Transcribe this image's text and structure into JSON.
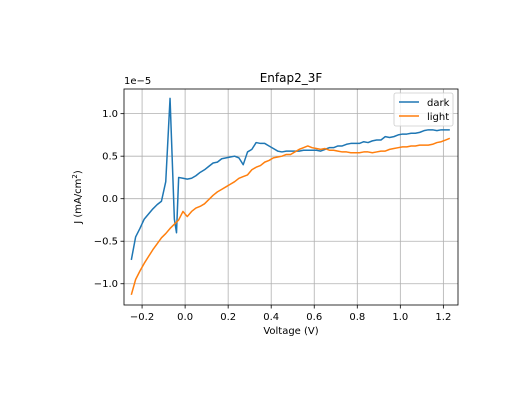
{
  "chart_data": {
    "type": "line",
    "title": "Enfap2_3F",
    "xlabel": "Voltage (V)",
    "ylabel_main": "J (mA/cm",
    "ylabel_sup": "2",
    "ylabel_close": ")",
    "offset_base": "1e",
    "offset_exp": "−5",
    "xlim": [
      -0.284,
      1.268
    ],
    "ylim": [
      -1.25,
      1.29
    ],
    "xticks": [
      -0.2,
      0.0,
      0.2,
      0.4,
      0.6,
      0.8,
      1.0,
      1.2
    ],
    "xtick_labels": [
      "−0.2",
      "0.0",
      "0.2",
      "0.4",
      "0.6",
      "0.8",
      "1.0",
      "1.2"
    ],
    "yticks": [
      -1.0,
      -0.5,
      0.0,
      0.5,
      1.0
    ],
    "ytick_labels": [
      "−1.0",
      "−0.5",
      "0.0",
      "0.5",
      "1.0"
    ],
    "grid": true,
    "legend_position": "upper right",
    "series": [
      {
        "name": "dark",
        "color": "#1f77b4",
        "x": [
          -0.25,
          -0.23,
          -0.21,
          -0.19,
          -0.17,
          -0.15,
          -0.13,
          -0.11,
          -0.09,
          -0.07,
          -0.05,
          -0.04,
          -0.03,
          -0.01,
          0.01,
          0.03,
          0.05,
          0.07,
          0.09,
          0.11,
          0.13,
          0.15,
          0.17,
          0.19,
          0.21,
          0.23,
          0.25,
          0.27,
          0.29,
          0.31,
          0.33,
          0.35,
          0.37,
          0.39,
          0.41,
          0.43,
          0.45,
          0.47,
          0.49,
          0.51,
          0.53,
          0.55,
          0.57,
          0.59,
          0.61,
          0.63,
          0.65,
          0.67,
          0.69,
          0.71,
          0.73,
          0.75,
          0.77,
          0.79,
          0.81,
          0.83,
          0.85,
          0.87,
          0.89,
          0.91,
          0.93,
          0.95,
          0.97,
          0.99,
          1.01,
          1.03,
          1.05,
          1.07,
          1.09,
          1.11,
          1.13,
          1.15,
          1.17,
          1.19,
          1.21,
          1.23
        ],
        "values": [
          -0.72,
          -0.45,
          -0.35,
          -0.24,
          -0.18,
          -0.12,
          -0.07,
          -0.03,
          0.2,
          1.18,
          -0.24,
          -0.4,
          0.25,
          0.24,
          0.23,
          0.24,
          0.27,
          0.31,
          0.34,
          0.38,
          0.42,
          0.43,
          0.47,
          0.48,
          0.49,
          0.5,
          0.48,
          0.4,
          0.55,
          0.58,
          0.66,
          0.65,
          0.65,
          0.62,
          0.59,
          0.56,
          0.55,
          0.56,
          0.56,
          0.56,
          0.56,
          0.57,
          0.57,
          0.57,
          0.57,
          0.56,
          0.58,
          0.6,
          0.6,
          0.62,
          0.62,
          0.64,
          0.65,
          0.65,
          0.65,
          0.67,
          0.66,
          0.68,
          0.69,
          0.69,
          0.73,
          0.72,
          0.73,
          0.75,
          0.76,
          0.76,
          0.77,
          0.77,
          0.78,
          0.8,
          0.81,
          0.81,
          0.8,
          0.81,
          0.81,
          0.81
        ]
      },
      {
        "name": "light",
        "color": "#ff7f0e",
        "x": [
          -0.25,
          -0.23,
          -0.21,
          -0.19,
          -0.17,
          -0.15,
          -0.13,
          -0.11,
          -0.09,
          -0.07,
          -0.05,
          -0.03,
          -0.01,
          0.01,
          0.03,
          0.05,
          0.07,
          0.09,
          0.11,
          0.13,
          0.15,
          0.17,
          0.19,
          0.21,
          0.23,
          0.25,
          0.27,
          0.29,
          0.31,
          0.33,
          0.35,
          0.37,
          0.39,
          0.41,
          0.43,
          0.45,
          0.47,
          0.49,
          0.51,
          0.53,
          0.55,
          0.57,
          0.59,
          0.61,
          0.63,
          0.65,
          0.67,
          0.69,
          0.71,
          0.73,
          0.75,
          0.77,
          0.79,
          0.81,
          0.83,
          0.85,
          0.87,
          0.89,
          0.91,
          0.93,
          0.95,
          0.97,
          0.99,
          1.01,
          1.03,
          1.05,
          1.07,
          1.09,
          1.11,
          1.13,
          1.15,
          1.17,
          1.19,
          1.21,
          1.23
        ],
        "values": [
          -1.13,
          -0.95,
          -0.85,
          -0.76,
          -0.68,
          -0.6,
          -0.53,
          -0.46,
          -0.41,
          -0.35,
          -0.3,
          -0.25,
          -0.15,
          -0.21,
          -0.15,
          -0.11,
          -0.09,
          -0.06,
          -0.01,
          0.04,
          0.08,
          0.11,
          0.14,
          0.17,
          0.2,
          0.24,
          0.26,
          0.28,
          0.34,
          0.37,
          0.39,
          0.43,
          0.45,
          0.48,
          0.49,
          0.5,
          0.52,
          0.52,
          0.55,
          0.58,
          0.6,
          0.62,
          0.6,
          0.59,
          0.58,
          0.59,
          0.57,
          0.57,
          0.56,
          0.55,
          0.55,
          0.54,
          0.54,
          0.54,
          0.55,
          0.55,
          0.54,
          0.55,
          0.56,
          0.56,
          0.58,
          0.59,
          0.6,
          0.61,
          0.61,
          0.62,
          0.62,
          0.63,
          0.63,
          0.63,
          0.64,
          0.66,
          0.67,
          0.69,
          0.71
        ]
      }
    ]
  }
}
